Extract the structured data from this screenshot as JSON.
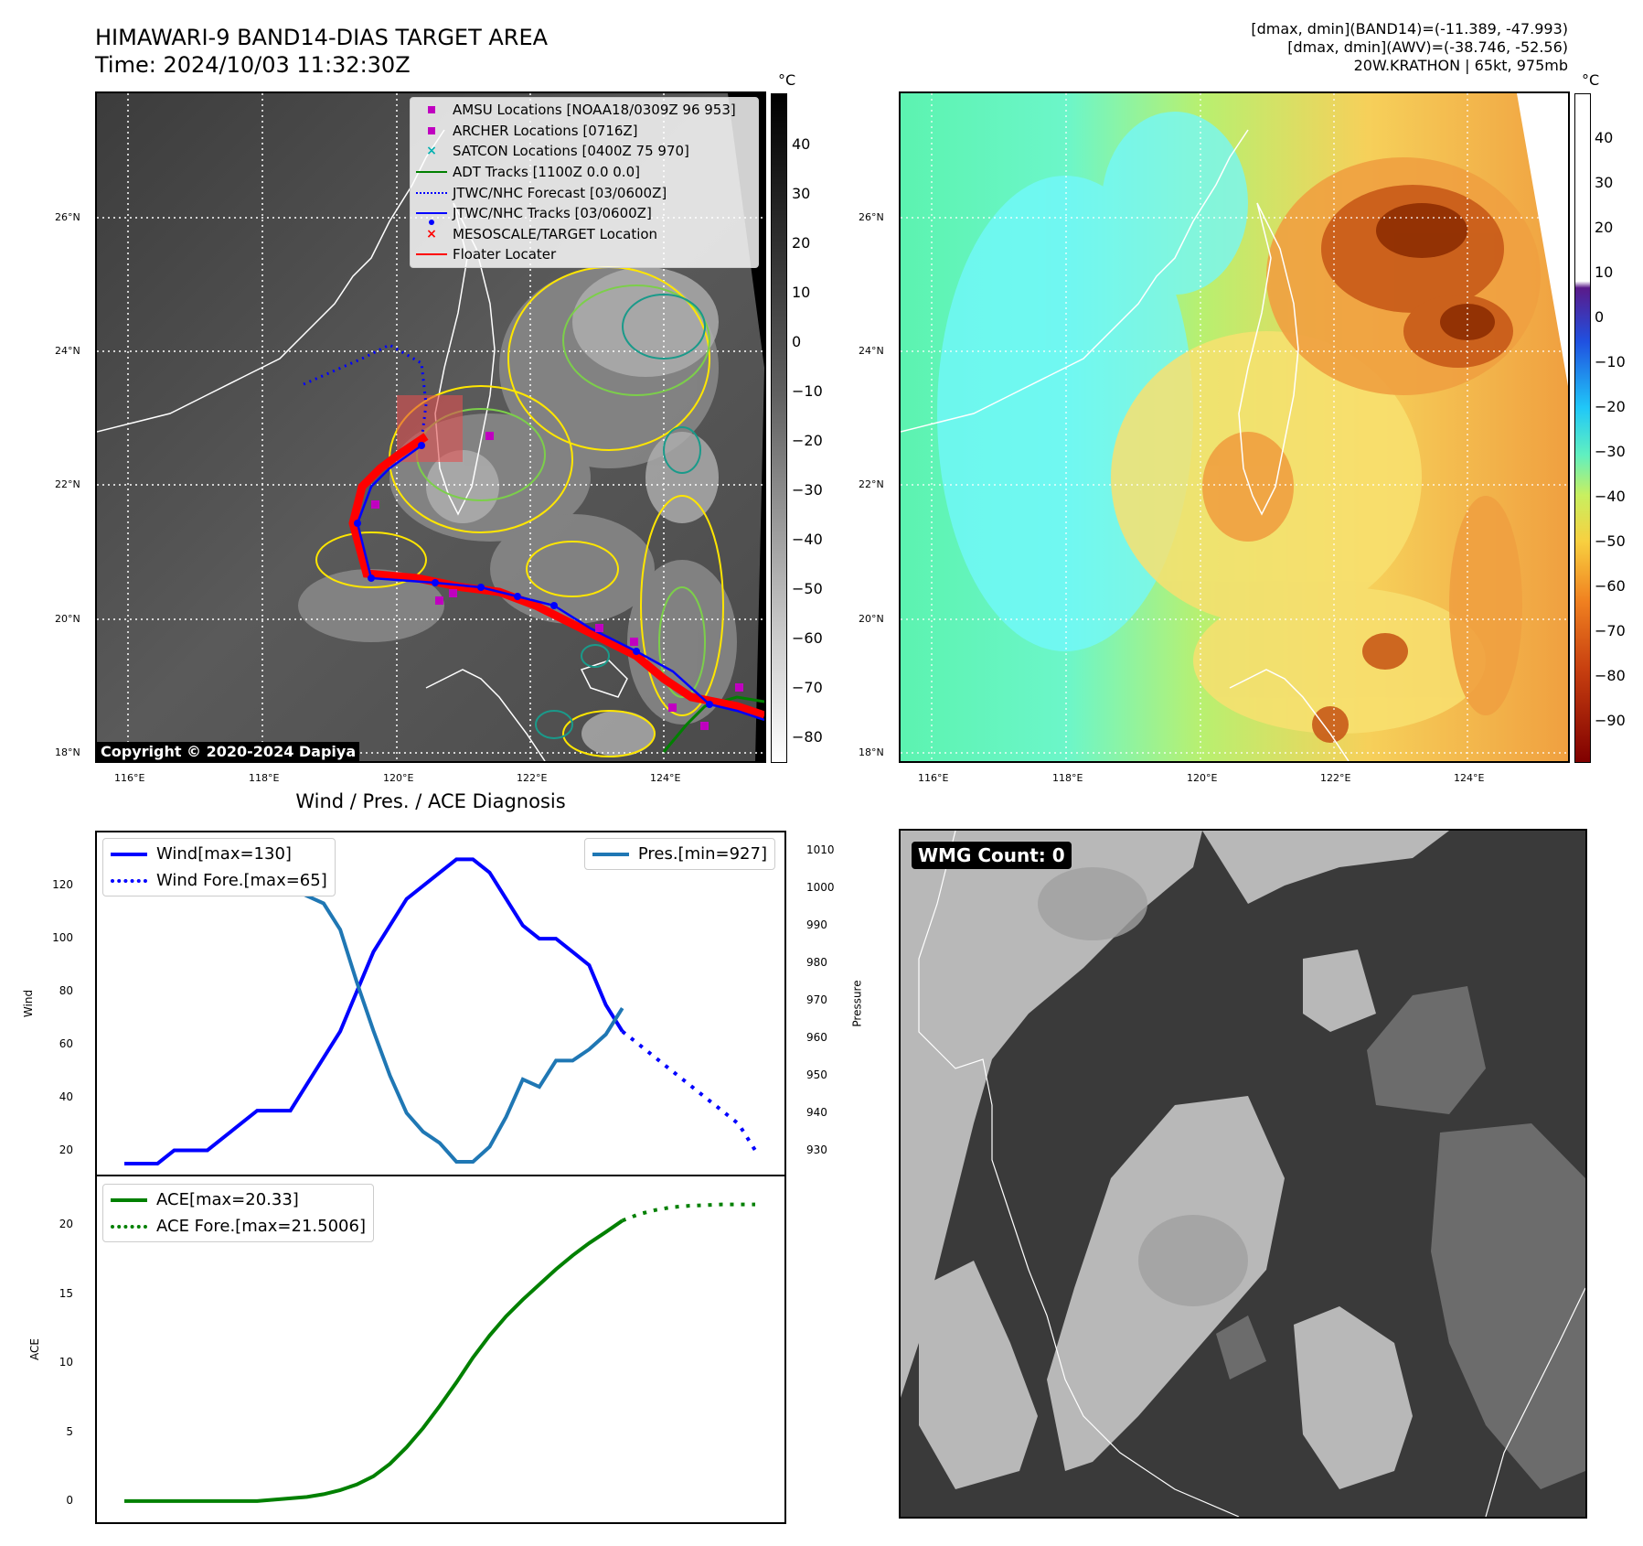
{
  "header": {
    "title_line1": "HIMAWARI-9 BAND14-DIAS TARGET AREA",
    "title_line2": "Time: 2024/10/03 11:32:30Z",
    "info_line1": "[dmax, dmin](BAND14)=(-11.389, -47.993)",
    "info_line2": "[dmax, dmin](AWV)=(-38.746, -52.56)",
    "info_line3": "20W.KRATHON | 65kt, 975mb"
  },
  "map_axes": {
    "lat_labels": [
      "26°N",
      "24°N",
      "22°N",
      "20°N",
      "18°N"
    ],
    "lon_labels": [
      "116°E",
      "118°E",
      "120°E",
      "122°E",
      "124°E"
    ],
    "unit": "°C"
  },
  "ir_colorbar": {
    "ticks": [
      "40",
      "30",
      "20",
      "10",
      "0",
      "−10",
      "−20",
      "−30",
      "−40",
      "−50",
      "−60",
      "−70",
      "−80"
    ]
  },
  "awv_colorbar": {
    "ticks": [
      "40",
      "30",
      "20",
      "10",
      "0",
      "−10",
      "−20",
      "−30",
      "−40",
      "−50",
      "−60",
      "−70",
      "−80",
      "−90"
    ]
  },
  "map_legend": {
    "items": [
      {
        "label": "AMSU Locations [NOAA18/0309Z 96 953]",
        "symbol": "square",
        "color": "#c000c0"
      },
      {
        "label": "ARCHER Locations [0716Z]",
        "symbol": "square",
        "color": "#c000c0"
      },
      {
        "label": "SATCON Locations [0400Z 75 970]",
        "symbol": "x",
        "color": "#00b0b0"
      },
      {
        "label": "ADT Tracks [1100Z 0.0 0.0]",
        "symbol": "line",
        "color": "#008000"
      },
      {
        "label": "JTWC/NHC Forecast [03/0600Z]",
        "symbol": "dotted",
        "color": "#0000ff"
      },
      {
        "label": "JTWC/NHC Tracks [03/0600Z]",
        "symbol": "line-dot",
        "color": "#0000ff"
      },
      {
        "label": "MESOSCALE/TARGET Location",
        "symbol": "x",
        "color": "#ff0000"
      },
      {
        "label": "Floater Locater",
        "symbol": "line",
        "color": "#ff0000"
      }
    ]
  },
  "copyright": "Copyright © 2020-2024 Dapiya",
  "wmg_label": "WMG Count: 0",
  "diagnosis_title": "Wind / Pres. / ACE Diagnosis",
  "wind_legend": {
    "wind": "Wind[max=130]",
    "wind_fore": "Wind Fore.[max=65]"
  },
  "pres_legend": {
    "pres": "Pres.[min=927]"
  },
  "ace_legend": {
    "ace": "ACE[max=20.33]",
    "ace_fore": "ACE Fore.[max=21.5006]"
  },
  "axis_labels": {
    "wind": "Wind",
    "pressure": "Pressure",
    "ace": "ACE"
  },
  "chart_data": [
    {
      "type": "line",
      "title": "Wind / Pres. / ACE Diagnosis",
      "ylabel": "Wind",
      "y2label": "Pressure",
      "ylim": [
        15,
        136
      ],
      "y2lim": [
        926.5,
        1012
      ],
      "yticks": [
        "20",
        "40",
        "60",
        "80",
        "100",
        "120"
      ],
      "y2ticks": [
        "930",
        "940",
        "950",
        "960",
        "970",
        "980",
        "990",
        "1000",
        "1010"
      ],
      "series": [
        {
          "name": "Wind[max=130]",
          "color": "#0000ff",
          "style": "solid",
          "values": [
            15,
            15,
            15,
            20,
            20,
            20,
            25,
            30,
            35,
            35,
            35,
            45,
            55,
            65,
            80,
            95,
            105,
            115,
            120,
            125,
            130,
            130,
            125,
            115,
            105,
            100,
            100,
            95,
            90,
            75,
            65
          ]
        },
        {
          "name": "Wind Fore.[max=65]",
          "color": "#0000ff",
          "style": "dotted",
          "values": [
            null,
            null,
            null,
            null,
            null,
            null,
            null,
            null,
            null,
            null,
            null,
            null,
            null,
            null,
            null,
            null,
            null,
            null,
            null,
            null,
            null,
            null,
            null,
            null,
            null,
            null,
            null,
            null,
            null,
            null,
            65,
            60,
            55,
            50,
            45,
            40,
            35,
            30,
            20
          ]
        },
        {
          "name": "Pres.[min=927]",
          "color": "#1f77b4",
          "style": "solid",
          "values": [
            1010,
            1010,
            1010,
            1008,
            1007,
            1006,
            1004,
            1003,
            1002,
            1002,
            1000,
            998,
            996,
            989,
            975,
            962,
            950,
            940,
            935,
            932,
            927,
            927,
            931,
            939,
            949,
            947,
            954,
            954,
            957,
            961,
            968
          ]
        }
      ]
    },
    {
      "type": "area",
      "ylabel": "ACE",
      "ylim": [
        -1,
        23
      ],
      "yticks": [
        "0",
        "5",
        "10",
        "15",
        "20"
      ],
      "series": [
        {
          "name": "ACE[max=20.33]",
          "color": "#008000",
          "style": "solid",
          "values": [
            0,
            0,
            0,
            0,
            0,
            0,
            0,
            0,
            0,
            0.1,
            0.2,
            0.3,
            0.5,
            0.8,
            1.2,
            1.8,
            2.7,
            3.9,
            5.3,
            6.9,
            8.6,
            10.4,
            12.0,
            13.4,
            14.6,
            15.7,
            16.8,
            17.8,
            18.7,
            19.5,
            20.33
          ]
        },
        {
          "name": "ACE Fore.[max=21.5006]",
          "color": "#008000",
          "style": "dotted",
          "values": [
            null,
            null,
            null,
            null,
            null,
            null,
            null,
            null,
            null,
            null,
            null,
            null,
            null,
            null,
            null,
            null,
            null,
            null,
            null,
            null,
            null,
            null,
            null,
            null,
            null,
            null,
            null,
            null,
            null,
            null,
            20.33,
            20.8,
            21.1,
            21.3,
            21.4,
            21.45,
            21.5,
            21.5,
            21.5006
          ]
        }
      ]
    }
  ],
  "colors": {
    "wind": "#0000ff",
    "pressure": "#1f77b4",
    "ace": "#008000",
    "track_red": "#ff0000"
  }
}
